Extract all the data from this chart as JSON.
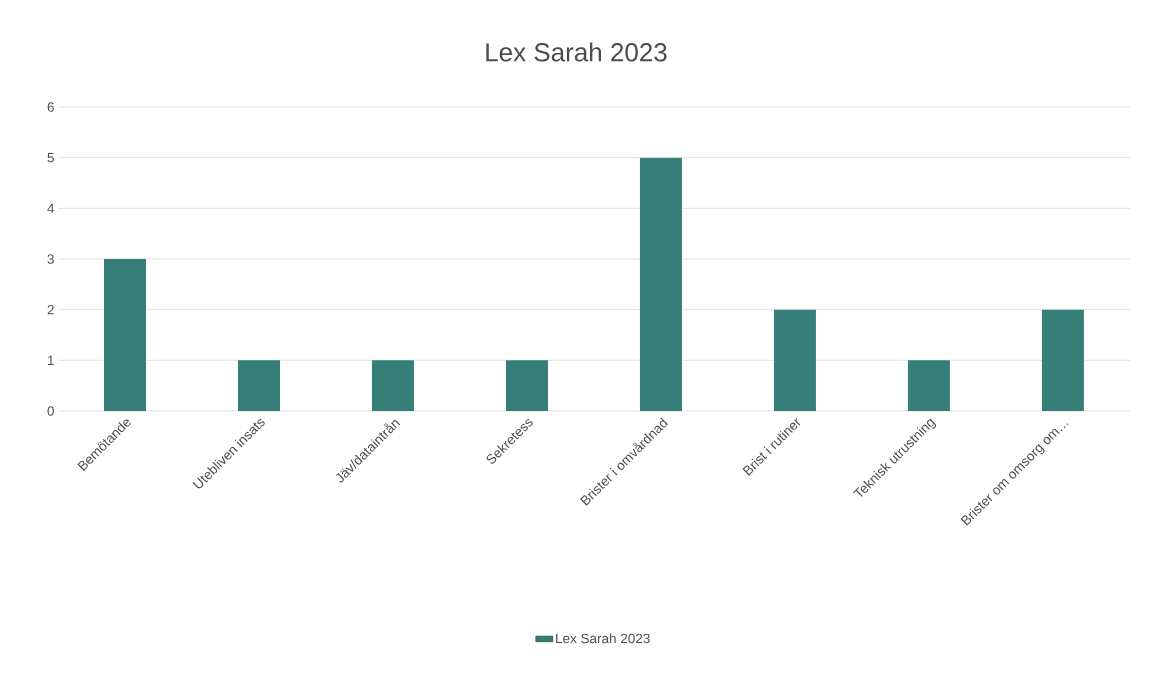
{
  "chart_data": {
    "type": "bar",
    "title": "Lex Sarah 2023",
    "categories": [
      "Bemötande",
      "Utebliven insats",
      "Jäv/dataintrån",
      "Sekretess",
      "Brister i omvårdnad",
      "Brist i rutiner",
      "Teknisk utrustning",
      "Brister om omsorg om…"
    ],
    "series": [
      {
        "name": "Lex Sarah 2023",
        "color": "#367e78",
        "values": [
          3,
          1,
          1,
          1,
          5,
          2,
          1,
          2
        ]
      }
    ],
    "ylim": [
      0,
      6
    ],
    "yticks": [
      0,
      1,
      2,
      3,
      4,
      5,
      6
    ],
    "grid": "y",
    "legend": "bottom"
  }
}
